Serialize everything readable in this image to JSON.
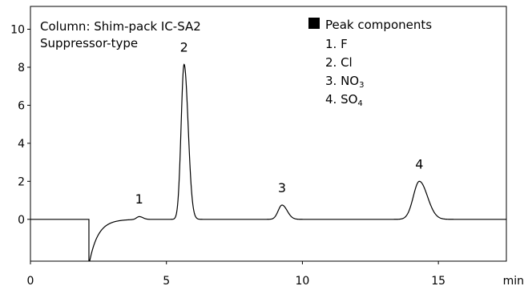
{
  "chart_data": {
    "type": "line",
    "title": "",
    "xlabel": "",
    "ylabel": "",
    "x_unit": "min",
    "xlim": [
      0,
      17.5
    ],
    "ylim": [
      -2.2,
      11.2
    ],
    "x_ticks": [
      0,
      5,
      10,
      15
    ],
    "y_ticks": [
      0,
      2,
      4,
      6,
      8,
      10
    ],
    "grid": false,
    "info_lines": [
      "Column: Shim-pack IC-SA2",
      "Suppressor-type"
    ],
    "legend": {
      "title": "Peak components",
      "placement": "top-right",
      "items": [
        {
          "number": "1.",
          "name": "F",
          "subscript": ""
        },
        {
          "number": "2.",
          "name": "Cl",
          "subscript": ""
        },
        {
          "number": "3.",
          "name": "NO",
          "subscript": "3"
        },
        {
          "number": "4.",
          "name": "SO",
          "subscript": "4"
        }
      ]
    },
    "peaks": [
      {
        "label": "1",
        "time": 4.0,
        "height": 0.15,
        "width": 0.1
      },
      {
        "label": "2",
        "time": 5.65,
        "height": 8.15,
        "width": 0.11
      },
      {
        "label": "3",
        "time": 9.25,
        "height": 0.75,
        "width": 0.14
      },
      {
        "label": "4",
        "time": 14.3,
        "height": 2.0,
        "width": 0.22
      }
    ],
    "system_dip": {
      "time": 2.15,
      "min": -2.4
    },
    "baseline": 0.0,
    "line_color": "#000000"
  }
}
